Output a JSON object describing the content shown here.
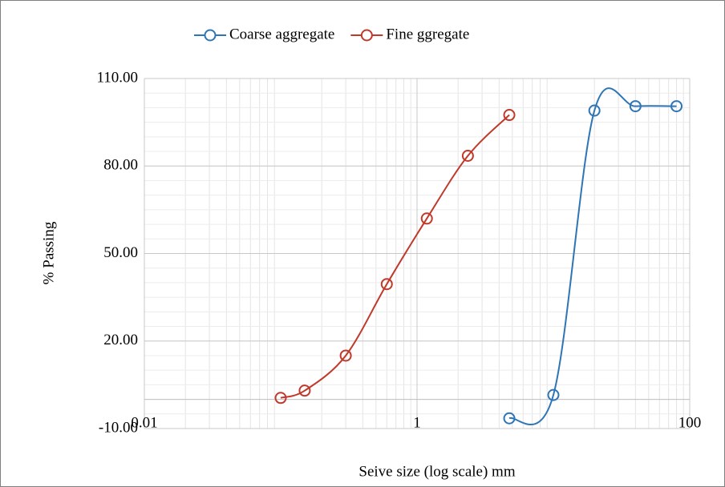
{
  "chart_data": {
    "type": "line",
    "log_x": true,
    "grid": true,
    "legend": "top",
    "x_label": "Seive size (log scale) mm",
    "y_label": "% Passing",
    "xlim": [
      0.01,
      100
    ],
    "xticks": [
      0.01,
      1,
      100
    ],
    "ylim": [
      -10,
      110
    ],
    "yticks": [
      {
        "value": -10,
        "label": "-10.00"
      },
      {
        "value": 20,
        "label": "20.00"
      },
      {
        "value": 50,
        "label": "50.00"
      },
      {
        "value": 80,
        "label": "80.00"
      },
      {
        "value": 110,
        "label": "110.00"
      }
    ],
    "series": [
      {
        "name": "Coarse aggregate",
        "color": "#2e75b6",
        "x": [
          4.75,
          10,
          20,
          40,
          80
        ],
        "values": [
          -6.5,
          1.5,
          99,
          100.5,
          100.5
        ]
      },
      {
        "name": "Fine ggregate",
        "color": "#c0392b",
        "x": [
          0.1,
          0.15,
          0.3,
          0.6,
          1.18,
          2.36,
          4.75
        ],
        "values": [
          0.5,
          3,
          15,
          39.5,
          62,
          83.5,
          97.5
        ]
      }
    ]
  }
}
